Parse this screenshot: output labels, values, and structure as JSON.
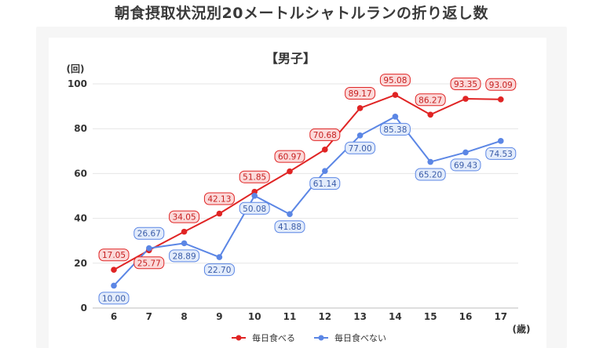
{
  "page": {
    "title": "朝食摂取状況別20メートルシャトルランの折り返し数"
  },
  "chart_data": {
    "type": "line",
    "title": "【男子】",
    "ylabel": "(回)",
    "xlabel": "(歳)",
    "categories": [
      "6",
      "7",
      "8",
      "9",
      "10",
      "11",
      "12",
      "13",
      "14",
      "15",
      "16",
      "17"
    ],
    "ylim": [
      0,
      100
    ],
    "yticks": [
      "0",
      "20",
      "40",
      "60",
      "80",
      "100"
    ],
    "grid": "horizontal",
    "legend_position": "bottom",
    "series": [
      {
        "name": "毎日食べる",
        "color": "#e02424",
        "label_fill": "#fbd9d9",
        "values": [
          17.05,
          25.77,
          34.05,
          42.13,
          51.85,
          60.97,
          70.68,
          89.17,
          95.08,
          86.27,
          93.35,
          93.09
        ],
        "labels": [
          "17.05",
          "25.77",
          "34.05",
          "42.13",
          "51.85",
          "60.97",
          "70.68",
          "89.17",
          "95.08",
          "86.27",
          "93.35",
          "93.09"
        ]
      },
      {
        "name": "毎日食べない",
        "color": "#5b86e5",
        "label_fill": "#e3ecfb",
        "values": [
          10.0,
          26.67,
          28.89,
          22.7,
          50.08,
          41.88,
          61.14,
          77.0,
          85.38,
          65.2,
          69.43,
          74.53
        ],
        "labels": [
          "10.00",
          "26.67",
          "28.89",
          "22.70",
          "50.08",
          "41.88",
          "61.14",
          "77.00",
          "85.38",
          "65.20",
          "69.43",
          "74.53"
        ]
      }
    ]
  }
}
